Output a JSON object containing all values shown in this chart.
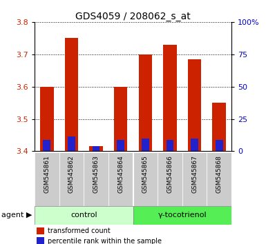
{
  "title": "GDS4059 / 208062_s_at",
  "samples": [
    "GSM545861",
    "GSM545862",
    "GSM545863",
    "GSM545864",
    "GSM545865",
    "GSM545866",
    "GSM545867",
    "GSM545868"
  ],
  "red_values": [
    3.6,
    3.75,
    3.415,
    3.6,
    3.7,
    3.73,
    3.685,
    3.55
  ],
  "blue_values": [
    3.435,
    3.445,
    3.415,
    3.435,
    3.44,
    3.435,
    3.44,
    3.435
  ],
  "baseline": 3.4,
  "ylim_left": [
    3.4,
    3.8
  ],
  "ylim_right": [
    0,
    100
  ],
  "yticks_left": [
    3.4,
    3.5,
    3.6,
    3.7,
    3.8
  ],
  "yticks_right": [
    0,
    25,
    50,
    75,
    100
  ],
  "groups": [
    {
      "label": "control",
      "indices": [
        0,
        1,
        2,
        3
      ],
      "color": "#ccffcc"
    },
    {
      "label": "γ-tocotrienol",
      "indices": [
        4,
        5,
        6,
        7
      ],
      "color": "#55ee55"
    }
  ],
  "agent_label": "agent",
  "bar_color_red": "#cc2200",
  "bar_color_blue": "#2222cc",
  "bar_width": 0.55,
  "tick_label_color_left": "#cc2200",
  "tick_label_color_right": "#0000cc",
  "grid_color": "black",
  "legend_red": "transformed count",
  "legend_blue": "percentile rank within the sample",
  "sample_bg_color": "#cccccc",
  "title_fontsize": 10,
  "group_row_color_light": "#bbffbb",
  "group_row_color_dark": "#44ee44"
}
